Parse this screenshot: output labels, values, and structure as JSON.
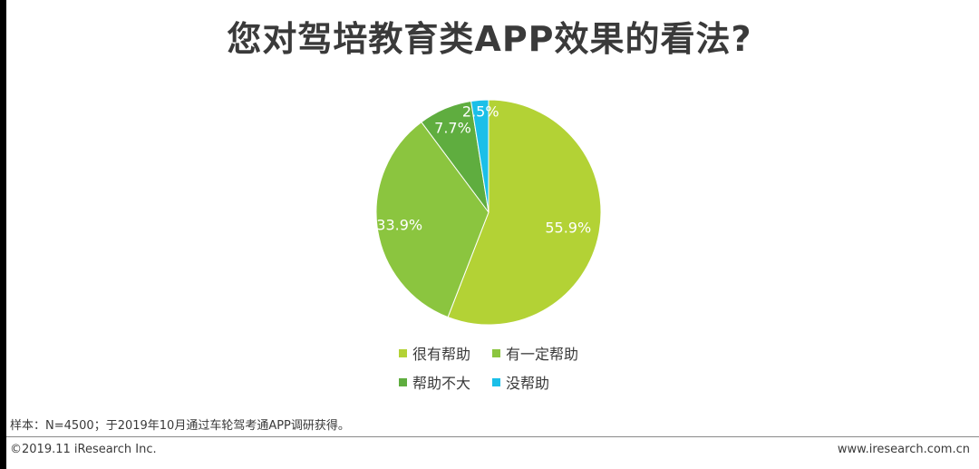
{
  "title": "您对驾培教育类APP效果的看法?",
  "chart_data": {
    "type": "pie",
    "categories": [
      "很有帮助",
      "有一定帮助",
      "帮助不大",
      "没帮助"
    ],
    "values": [
      55.9,
      33.9,
      7.7,
      2.5
    ],
    "value_labels": [
      "55.9%",
      "33.9%",
      "7.7%",
      "2.5%"
    ],
    "colors": [
      "#b3d235",
      "#8bc53f",
      "#5fad3f",
      "#1bbfe8"
    ],
    "start_angle": "12 o'clock",
    "direction": "clockwise",
    "legend_placement": "bottom"
  },
  "legend": {
    "items": [
      {
        "label": "很有帮助",
        "color": "#b3d235"
      },
      {
        "label": "有一定帮助",
        "color": "#8bc53f"
      },
      {
        "label": "帮助不大",
        "color": "#5fad3f"
      },
      {
        "label": "没帮助",
        "color": "#1bbfe8"
      }
    ]
  },
  "footer": {
    "note": "样本：N=4500；于2019年10月通过车轮驾考通APP调研获得。",
    "copyright": "©2019.11 iResearch Inc.",
    "website": "www.iresearch.com.cn"
  }
}
